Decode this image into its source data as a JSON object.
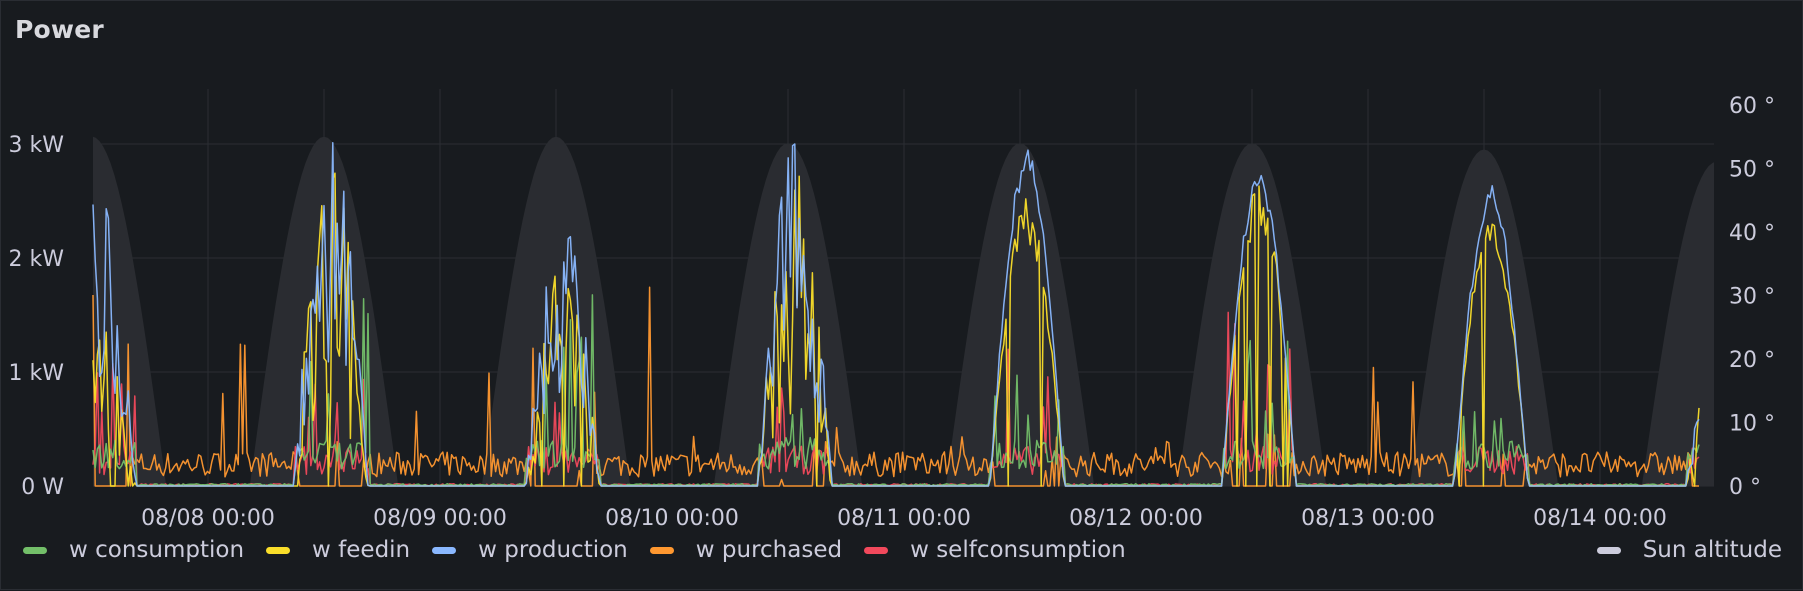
{
  "panel": {
    "title": "Power"
  },
  "chart_data": {
    "type": "line",
    "title": "Power",
    "x_axis": {
      "ticks": [
        "08/08 00:00",
        "08/09 00:00",
        "08/10 00:00",
        "08/11 00:00",
        "08/12 00:00",
        "08/13 00:00",
        "08/14 00:00"
      ],
      "range": [
        "08/07 09:30",
        "08/14 16:30"
      ]
    },
    "y_axis_left": {
      "unit": "W",
      "ticks": [
        "0 W",
        "1 kW",
        "2 kW",
        "3 kW"
      ],
      "range_kw": [
        0,
        3.3
      ]
    },
    "y_axis_right": {
      "unit": "°",
      "ticks": [
        "0 °",
        "10 °",
        "20 °",
        "30 °",
        "40 °",
        "50 °",
        "60 °"
      ],
      "range": [
        0,
        60
      ]
    },
    "grid": true,
    "legend_position": "bottom",
    "series": [
      {
        "name": "w consumption",
        "color": "#73bf69",
        "axis": "left",
        "daily_peak_kw": [
          1.35,
          1.65,
          1.75,
          1.0,
          1.1,
          1.4,
          1.3,
          0.3
        ]
      },
      {
        "name": "w feedin",
        "color": "#fade2a",
        "axis": "left",
        "daily_peak_kw": [
          1.7,
          2.9,
          2.05,
          2.8,
          2.6,
          2.75,
          2.55,
          1.4
        ]
      },
      {
        "name": "w production",
        "color": "#8ab8ff",
        "axis": "left",
        "daily_peak_kw": [
          2.55,
          3.02,
          2.3,
          3.0,
          2.95,
          2.8,
          2.65,
          2.05
        ]
      },
      {
        "name": "w purchased",
        "color": "#ff9830",
        "axis": "left",
        "daily_peak_kw": [
          1.82,
          1.3,
          1.75,
          0.55,
          0.45,
          0.5,
          1.2,
          0.3
        ]
      },
      {
        "name": "w selfconsumption",
        "color": "#f2495c",
        "axis": "left",
        "daily_peak_kw": [
          1.1,
          1.05,
          1.1,
          0.95,
          1.35,
          1.65,
          0.95,
          0.55
        ]
      },
      {
        "name": "Sun altitude",
        "color": "#ccccdc",
        "axis": "right",
        "daily_max_deg": [
          55,
          55,
          55,
          54,
          54,
          54,
          53,
          51
        ]
      }
    ]
  },
  "legend": {
    "items": [
      "w consumption",
      "w feedin",
      "w production",
      "w purchased",
      "w selfconsumption"
    ],
    "right_item": "Sun altitude"
  }
}
